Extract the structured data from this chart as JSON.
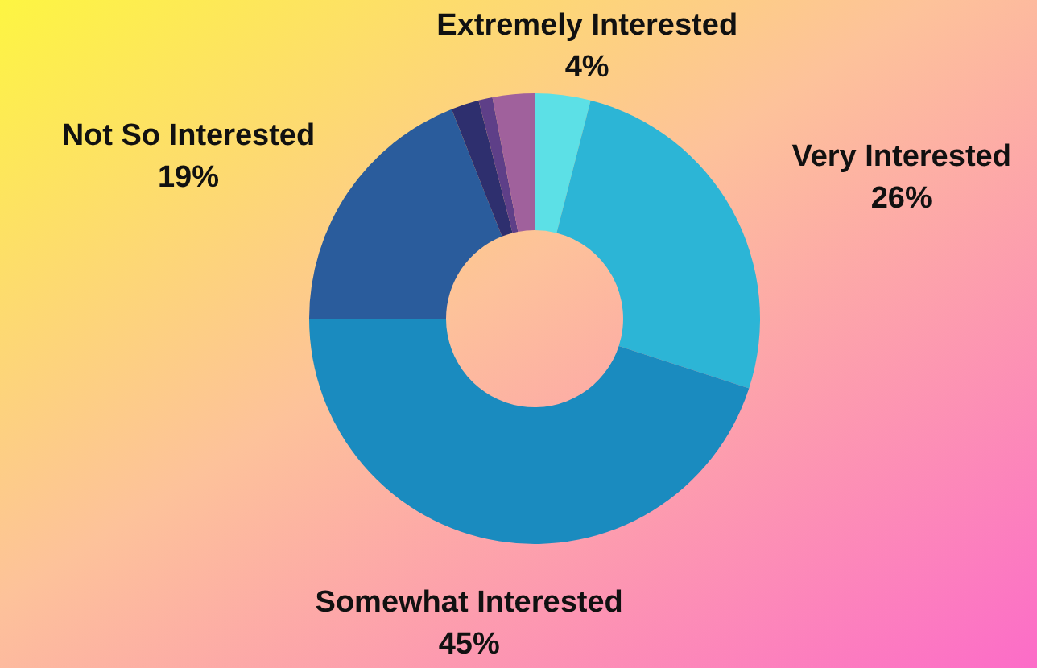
{
  "chart_data": {
    "type": "donut",
    "categories": [
      "Extremely Interested",
      "Very Interested",
      "Somewhat Interested",
      "Not So Interested",
      null,
      null,
      null
    ],
    "values": [
      4,
      26,
      45,
      19,
      2,
      1,
      3
    ],
    "colors": [
      "#5ce0e6",
      "#2cb5d6",
      "#1a8bbf",
      "#2a5c9c",
      "#2e2f6e",
      "#5e3f88",
      "#a0619c"
    ],
    "value_labels": [
      "4%",
      "26%",
      "45%",
      "19%",
      null,
      null,
      null
    ]
  }
}
